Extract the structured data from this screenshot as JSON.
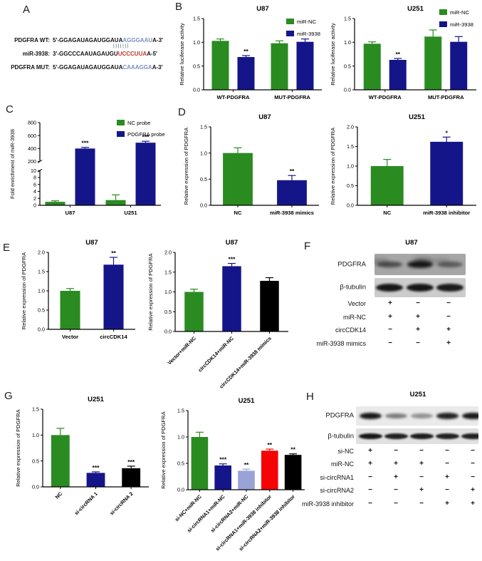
{
  "panel_labels": {
    "A": "A",
    "B": "B",
    "C": "C",
    "D": "D",
    "E": "E",
    "F": "F",
    "G": "G",
    "H": "H"
  },
  "colors": {
    "green": "#2a8b21",
    "navy": "#15158a",
    "lightblue": "#99a3d6",
    "red": "#f50406",
    "black": "#000000"
  },
  "panelA": {
    "rows": [
      {
        "name": "PDGFRA WT:",
        "prefix": "5'-GGAGAUAGAUGGAUA",
        "highlight": "AGGGAAU",
        "suffix": "A-3'",
        "highlight_color": "#7b8fc0"
      },
      {
        "name": "miR-3938:",
        "prefix": "3'-GGCCCAAUAGAUGU",
        "highlight": "UCCCUUA",
        "suffix": "A-5'",
        "highlight_color": "#c2362b"
      },
      {
        "name": "PDGFRA MUT:",
        "prefix": "5'-GGAGAUAGAUGGAUA",
        "highlight": "CAAAGGA",
        "suffix": "A-3'",
        "highlight_color": "#7b8fc0"
      }
    ],
    "match_marks": "|||||||"
  },
  "chart_data": [
    {
      "type": "bar",
      "title": "U87",
      "ylabel": "Relative luciferase activity",
      "ylim": [
        0,
        1.5
      ],
      "yticks": [
        "0.0",
        "0.5",
        "1.0",
        "1.5"
      ],
      "categories": [
        "WT-PDGFRA",
        "MUT-PDGFRA"
      ],
      "legend": true,
      "series": [
        {
          "name": "miR-NC",
          "color": "green",
          "values": [
            1.03,
            0.98
          ],
          "errors": [
            0.04,
            0.05
          ],
          "sig": [
            "",
            ""
          ]
        },
        {
          "name": "miR-3938",
          "color": "navy",
          "values": [
            0.69,
            1.01
          ],
          "errors": [
            0.03,
            0.06
          ],
          "sig": [
            "**",
            ""
          ]
        }
      ]
    },
    {
      "type": "bar",
      "title": "U251",
      "ylabel": "Relative luciferase activity",
      "ylim": [
        0,
        1.5
      ],
      "yticks": [
        "0.0",
        "0.5",
        "1.0",
        "1.5"
      ],
      "categories": [
        "WT-PDGFRA",
        "MUT-PDGFRA"
      ],
      "legend": true,
      "series": [
        {
          "name": "miR-NC",
          "color": "green",
          "values": [
            0.97,
            1.12
          ],
          "errors": [
            0.04,
            0.14
          ],
          "sig": [
            "",
            ""
          ]
        },
        {
          "name": "miR-3938",
          "color": "navy",
          "values": [
            0.63,
            1.01
          ],
          "errors": [
            0.03,
            0.11
          ],
          "sig": [
            "**",
            ""
          ]
        }
      ]
    },
    {
      "type": "bar",
      "title": "",
      "ylabel": "Fold enrichment of miR-3938",
      "ylim": [
        0,
        800
      ],
      "broken": {
        "lower": [
          0,
          10
        ],
        "upper": [
          200,
          800
        ],
        "lower_ticks": [
          0,
          2,
          4,
          6,
          8,
          10
        ],
        "upper_ticks": [
          200,
          400,
          600,
          800
        ]
      },
      "categories": [
        "U87",
        "U251"
      ],
      "legend": true,
      "series": [
        {
          "name": "NC probe",
          "color": "green",
          "values": [
            1.0,
            1.5
          ],
          "errors": [
            0.3,
            1.5
          ],
          "sig": [
            "",
            ""
          ]
        },
        {
          "name": "PDGFRA probe",
          "color": "navy",
          "values": [
            400,
            490
          ],
          "errors": [
            18,
            22
          ],
          "sig": [
            "***",
            "***"
          ]
        }
      ]
    },
    {
      "type": "bar",
      "title": "U87",
      "ylabel": "Relative expression of PDGFRA",
      "ylim": [
        0,
        1.5
      ],
      "yticks": [
        "0.0",
        "0.5",
        "1.0",
        "1.5"
      ],
      "bars": [
        {
          "label": "NC",
          "color": "green",
          "value": 1.0,
          "error": 0.1,
          "sig": ""
        },
        {
          "label": "miR-3938 mimics",
          "color": "navy",
          "value": 0.48,
          "error": 0.09,
          "sig": "**"
        }
      ]
    },
    {
      "type": "bar",
      "title": "U251",
      "ylabel": "Relative expression of PDGFRA",
      "ylim": [
        0,
        2.0
      ],
      "yticks": [
        "0.0",
        "0.5",
        "1.0",
        "1.5",
        "2.0"
      ],
      "bars": [
        {
          "label": "NC",
          "color": "green",
          "value": 1.0,
          "error": 0.17,
          "sig": ""
        },
        {
          "label": "miR-3938 inhibitor",
          "color": "navy",
          "value": 1.62,
          "error": 0.12,
          "sig": "*"
        }
      ]
    },
    {
      "type": "bar",
      "title": "U87",
      "ylabel": "Relative expression of PDGFRA",
      "ylim": [
        0,
        2.0
      ],
      "yticks": [
        "0.0",
        "0.5",
        "1.0",
        "1.5",
        "2.0"
      ],
      "bars": [
        {
          "label": "Vector",
          "color": "green",
          "value": 1.0,
          "error": 0.06,
          "sig": ""
        },
        {
          "label": "circCDK14",
          "color": "navy",
          "value": 1.68,
          "error": 0.19,
          "sig": "**"
        }
      ]
    },
    {
      "type": "bar",
      "title": "U87",
      "ylabel": "Relative expression of PDGFRA",
      "ylim": [
        0,
        2.0
      ],
      "yticks": [
        "0.0",
        "0.5",
        "1.0",
        "1.5",
        "2.0"
      ],
      "rotate_labels": true,
      "bars": [
        {
          "label": "Vector+miR-NC",
          "color": "green",
          "value": 1.0,
          "error": 0.07,
          "sig": ""
        },
        {
          "label": "circCDK14+miR-NC",
          "color": "navy",
          "value": 1.65,
          "error": 0.07,
          "sig": "***"
        },
        {
          "label": "circCDK14+miR-3938 mimics",
          "color": "black",
          "value": 1.28,
          "error": 0.08,
          "sig": ""
        }
      ]
    },
    {
      "type": "bar",
      "title": "U251",
      "ylabel": "Relative expression of PDGFRA",
      "ylim": [
        0,
        1.5
      ],
      "yticks": [
        "0.0",
        "0.5",
        "1.0",
        "1.5"
      ],
      "rotate_labels": true,
      "bars": [
        {
          "label": "NC",
          "color": "green",
          "value": 1.0,
          "error": 0.13,
          "sig": ""
        },
        {
          "label": "si-circRNA 1",
          "color": "navy",
          "value": 0.27,
          "error": 0.02,
          "sig": "***"
        },
        {
          "label": "si-circRNA 2",
          "color": "black",
          "value": 0.36,
          "error": 0.04,
          "sig": "***"
        }
      ]
    },
    {
      "type": "bar",
      "title": "U251",
      "ylabel": "Relative expression of PDGFRA",
      "ylim": [
        0,
        1.5
      ],
      "yticks": [
        "0.0",
        "0.5",
        "1.0",
        "1.5"
      ],
      "rotate_labels": true,
      "bars": [
        {
          "label": "si-NC+miR-NC",
          "color": "green",
          "value": 1.0,
          "error": 0.09,
          "sig": ""
        },
        {
          "label": "si-circRNA1+miR-NC",
          "color": "navy",
          "value": 0.46,
          "error": 0.03,
          "sig": "***"
        },
        {
          "label": "si-circRNA2+miR-NC",
          "color": "lightblue",
          "value": 0.36,
          "error": 0.03,
          "sig": "**"
        },
        {
          "label": "si-circRNA1+miR-3938 inhibitor",
          "color": "red",
          "value": 0.74,
          "error": 0.03,
          "sig": "**"
        },
        {
          "label": "si-circRNA2+miR-3938 inhibitor",
          "color": "black",
          "value": 0.66,
          "error": 0.02,
          "sig": "**"
        }
      ]
    }
  ],
  "panelF": {
    "title": "U87",
    "bands": [
      {
        "label": "PDGFRA",
        "bg": "#a6a6a6",
        "lanes": [
          0.6,
          0.92,
          0.5
        ],
        "messy": true
      },
      {
        "label": "β-tubulin",
        "bg": "#cccccc",
        "lanes": [
          0.95,
          0.95,
          0.92
        ],
        "messy": false
      }
    ],
    "rows": [
      {
        "label": "Vector",
        "marks": [
          "+",
          "−",
          "−"
        ]
      },
      {
        "label": "miR-NC",
        "marks": [
          "+",
          "+",
          "−"
        ]
      },
      {
        "label": "circCDK14",
        "marks": [
          "−",
          "+",
          "+"
        ]
      },
      {
        "label": "miR-3938 mimics",
        "marks": [
          "−",
          "−",
          "+"
        ]
      }
    ]
  },
  "panelH": {
    "title": "U251",
    "bands": [
      {
        "label": "PDGFRA",
        "bg": "#eaeaea",
        "lanes": [
          0.95,
          0.5,
          0.4,
          0.9,
          0.95
        ],
        "messy": false
      },
      {
        "label": "β-tubulin",
        "bg": "#e0e0e0",
        "lanes": [
          0.95,
          0.9,
          0.92,
          0.9,
          0.9
        ],
        "messy": false
      }
    ],
    "rows": [
      {
        "label": "si-NC",
        "marks": [
          "+",
          "−",
          "−",
          "−",
          "−"
        ]
      },
      {
        "label": "miR-NC",
        "marks": [
          "+",
          "+",
          "+",
          "−",
          "−"
        ]
      },
      {
        "label": "si-circRNA1",
        "marks": [
          "−",
          "+",
          "−",
          "+",
          "−"
        ]
      },
      {
        "label": "si-circRNA2",
        "marks": [
          "−",
          "−",
          "+",
          "−",
          "+"
        ]
      },
      {
        "label": "miR-3938 inhibitor",
        "marks": [
          "−",
          "−",
          "−",
          "+",
          "+"
        ]
      }
    ]
  }
}
